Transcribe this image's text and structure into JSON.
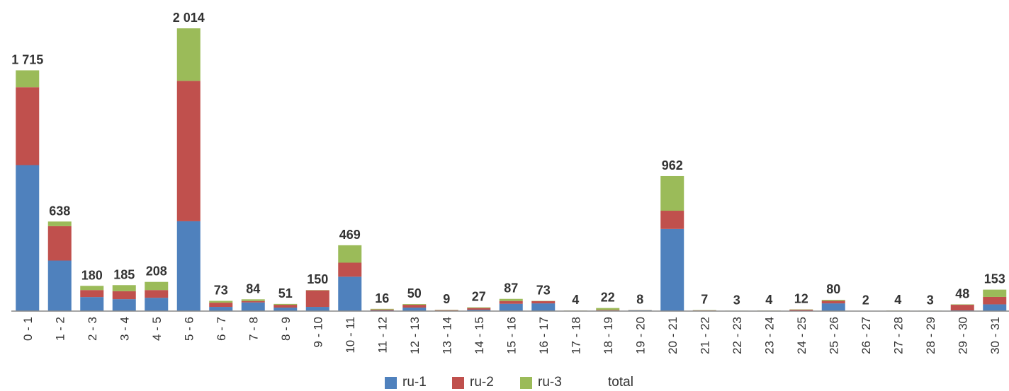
{
  "chart_data": {
    "type": "bar",
    "stacked": true,
    "categories": [
      "0 - 1",
      "1 - 2",
      "2 - 3",
      "3 - 4",
      "4 - 5",
      "5 - 6",
      "6 - 7",
      "7 - 8",
      "8 - 9",
      "9 - 10",
      "10 - 11",
      "11 - 12",
      "12 - 13",
      "13 - 14",
      "14 - 15",
      "15 - 16",
      "16 - 17",
      "17 - 18",
      "18 - 19",
      "19 - 20",
      "20 - 21",
      "21 - 22",
      "22 - 23",
      "23 - 24",
      "24 - 25",
      "25 - 26",
      "26 - 27",
      "27 - 28",
      "28 - 29",
      "29 - 30",
      "30 - 31"
    ],
    "series": [
      {
        "name": "ru-1",
        "color": "#4F81BD",
        "values": [
          1040,
          360,
          100,
          85,
          95,
          640,
          30,
          62,
          25,
          30,
          245,
          5,
          25,
          3,
          10,
          52,
          55,
          1,
          4,
          6,
          585,
          3,
          1,
          2,
          3,
          55,
          1,
          2,
          1,
          5,
          48
        ]
      },
      {
        "name": "ru-2",
        "color": "#C0504D",
        "values": [
          555,
          245,
          50,
          57,
          55,
          1000,
          30,
          10,
          20,
          118,
          100,
          6,
          20,
          4,
          12,
          20,
          16,
          2,
          4,
          1,
          130,
          2,
          1,
          1,
          7,
          18,
          1,
          1,
          1,
          40,
          53
        ]
      },
      {
        "name": "ru-3",
        "color": "#9BBB59",
        "values": [
          120,
          33,
          30,
          43,
          58,
          374,
          13,
          12,
          6,
          2,
          124,
          5,
          5,
          2,
          5,
          15,
          2,
          1,
          14,
          1,
          247,
          2,
          1,
          1,
          2,
          7,
          0,
          1,
          1,
          3,
          52
        ]
      }
    ],
    "totals": [
      1715,
      638,
      180,
      185,
      208,
      2014,
      73,
      84,
      51,
      150,
      469,
      16,
      50,
      9,
      27,
      87,
      73,
      4,
      22,
      8,
      962,
      7,
      3,
      4,
      12,
      80,
      2,
      4,
      3,
      48,
      153
    ],
    "total_labels": [
      "1 715",
      "638",
      "180",
      "185",
      "208",
      "2 014",
      "73",
      "84",
      "51",
      "150",
      "469",
      "16",
      "50",
      "9",
      "27",
      "87",
      "73",
      "4",
      "22",
      "8",
      "962",
      "7",
      "3",
      "4",
      "12",
      "80",
      "2",
      "4",
      "3",
      "48",
      "153"
    ],
    "ylim": [
      0,
      2100
    ],
    "grid": false,
    "legend_position": "bottom",
    "legend": [
      "ru-1",
      "ru-2",
      "ru-3",
      "total"
    ]
  }
}
